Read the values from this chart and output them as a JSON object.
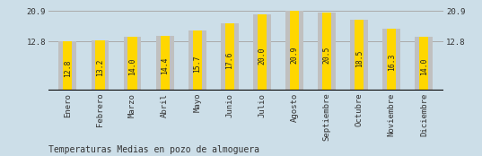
{
  "categories": [
    "Enero",
    "Febrero",
    "Marzo",
    "Abril",
    "Mayo",
    "Junio",
    "Julio",
    "Agosto",
    "Septiembre",
    "Octubre",
    "Noviembre",
    "Diciembre"
  ],
  "values": [
    12.8,
    13.2,
    14.0,
    14.4,
    15.7,
    17.6,
    20.0,
    20.9,
    20.5,
    18.5,
    16.3,
    14.0
  ],
  "bar_color_yellow": "#FFD700",
  "bar_color_gray": "#C0C0C0",
  "background_color": "#CCDEE8",
  "title": "Temperaturas Medias en pozo de almoguera",
  "ymin": 0,
  "ymax": 22.5,
  "ytick_vals": [
    12.8,
    20.9
  ],
  "hline_vals": [
    12.8,
    20.9
  ],
  "value_fontsize": 5.8,
  "axis_fontsize": 6.5,
  "title_fontsize": 7.0,
  "gray_bar_width": 0.55,
  "yellow_bar_width": 0.28
}
